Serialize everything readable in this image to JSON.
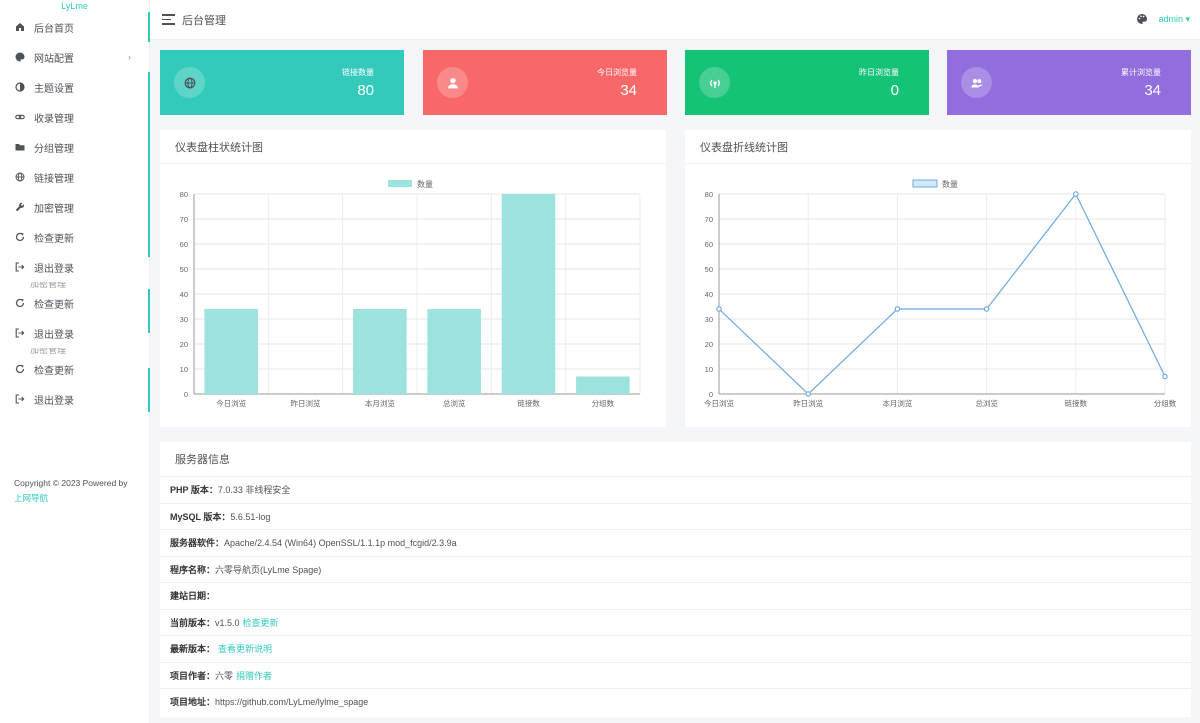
{
  "sidebar": {
    "brand": "LyLme",
    "items": [
      {
        "label": "后台首页",
        "icon": "home-icon"
      },
      {
        "label": "网站配置",
        "icon": "palette-icon",
        "caret": "›"
      },
      {
        "label": "主题设置",
        "icon": "contrast-icon"
      },
      {
        "label": "收录管理",
        "icon": "link-icon"
      },
      {
        "label": "分组管理",
        "icon": "folder-icon"
      },
      {
        "label": "链接管理",
        "icon": "globe-icon"
      },
      {
        "label": "加密管理",
        "icon": "wrench-icon"
      },
      {
        "label": "检查更新",
        "icon": "refresh-icon"
      },
      {
        "label": "退出登录",
        "icon": "logout-icon"
      }
    ],
    "repeat_items": [
      {
        "label": "检查更新",
        "icon": "refresh-icon"
      },
      {
        "label": "退出登录",
        "icon": "logout-icon"
      }
    ],
    "cut_label": "加密管理",
    "copyright": "Copyright © 2023 Powered by",
    "powered_link": "上网导航"
  },
  "header": {
    "title": "后台管理",
    "user": "admin ▾"
  },
  "stats": [
    {
      "label": "链接数量",
      "value": "80",
      "color": "#33cabb",
      "icon": "globe-icon"
    },
    {
      "label": "今日浏览量",
      "value": "34",
      "color": "#f96868",
      "icon": "user-icon"
    },
    {
      "label": "昨日浏览量",
      "value": "0",
      "color": "#15c377",
      "icon": "satellite-icon"
    },
    {
      "label": "累计浏览量",
      "value": "34",
      "color": "#926dde",
      "icon": "users-icon"
    }
  ],
  "chart_data": [
    {
      "type": "bar",
      "title": "仪表盘柱状统计图",
      "legend": "数量",
      "categories": [
        "今日浏览",
        "昨日浏览",
        "本月浏览",
        "总浏览",
        "链接数",
        "分组数"
      ],
      "values": [
        34,
        0,
        34,
        34,
        80,
        7
      ],
      "ylim": [
        0,
        80
      ],
      "yticks": [
        0,
        10,
        20,
        30,
        40,
        50,
        60,
        70,
        80
      ],
      "color": "#9be3dc",
      "grid": true
    },
    {
      "type": "line",
      "title": "仪表盘折线统计图",
      "legend": "数量",
      "categories": [
        "今日浏览",
        "昨日浏览",
        "本月浏览",
        "总浏览",
        "链接数",
        "分组数"
      ],
      "values": [
        34,
        0,
        34,
        34,
        80,
        7
      ],
      "ylim": [
        0,
        80
      ],
      "yticks": [
        0,
        10,
        20,
        30,
        40,
        50,
        60,
        70,
        80
      ],
      "color": "#6aa9e0",
      "grid": true
    }
  ],
  "server": {
    "title": "服务器信息",
    "rows": [
      {
        "key": "PHP 版本：",
        "value": "7.0.33 非线程安全",
        "link": ""
      },
      {
        "key": "MySQL 版本：",
        "value": "5.6.51-log",
        "link": ""
      },
      {
        "key": "服务器软件：",
        "value": "Apache/2.4.54 (Win64) OpenSSL/1.1.1p mod_fcgid/2.3.9a",
        "link": ""
      },
      {
        "key": "程序名称：",
        "value": "六零导航页(LyLme Spage)",
        "link": ""
      },
      {
        "key": "建站日期：",
        "value": "",
        "link": ""
      },
      {
        "key": "当前版本：",
        "value": "v1.5.0",
        "link": "检查更新"
      },
      {
        "key": "最新版本：",
        "value": "",
        "link": "查看更新说明"
      },
      {
        "key": "项目作者：",
        "value": "六零",
        "link": "捐赠作者"
      },
      {
        "key": "项目地址：",
        "value": "https://github.com/LyLme/lylme_spage",
        "link": ""
      }
    ]
  }
}
